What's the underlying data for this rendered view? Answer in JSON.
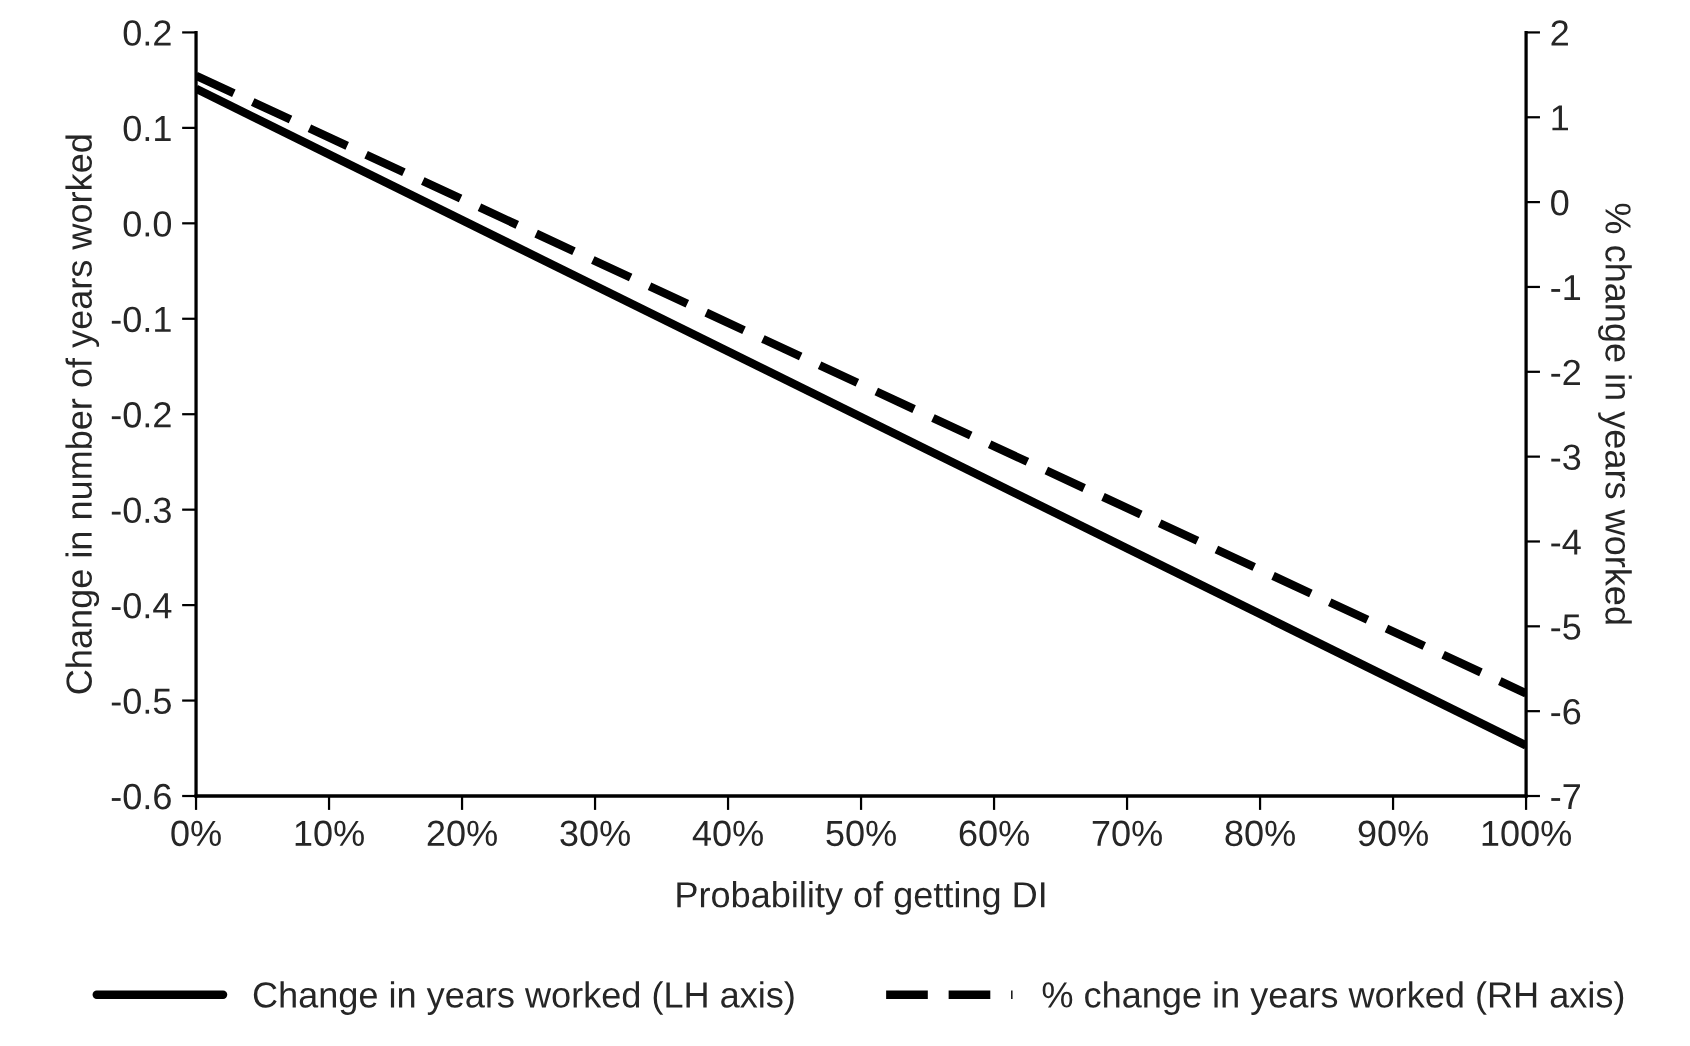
{
  "chart_data": {
    "type": "line",
    "xlabel": "Probability of getting DI",
    "ylabel": "Change in number of years worked",
    "y2label": "% change in years worked",
    "x": [
      0,
      100
    ],
    "series": [
      {
        "name": "Change in years worked (LH axis)",
        "color": "#000000",
        "values": [
          0.141,
          -0.547
        ],
        "line_style": "solid"
      },
      {
        "name": "% change in years worked (RH axis)",
        "color": "#000000",
        "values": [
          1.49,
          -5.79
        ],
        "axis": "y2",
        "line_style": "dashed"
      }
    ],
    "xlim": [
      0,
      100
    ],
    "xticks": [
      {
        "value": 0,
        "label": "0%"
      },
      {
        "value": 10,
        "label": "10%"
      },
      {
        "value": 20,
        "label": "20%"
      },
      {
        "value": 30,
        "label": "30%"
      },
      {
        "value": 40,
        "label": "40%"
      },
      {
        "value": 50,
        "label": "50%"
      },
      {
        "value": 60,
        "label": "60%"
      },
      {
        "value": 70,
        "label": "70%"
      },
      {
        "value": 80,
        "label": "80%"
      },
      {
        "value": 90,
        "label": "90%"
      },
      {
        "value": 100,
        "label": "100%"
      }
    ],
    "ylim": [
      -0.6,
      0.2
    ],
    "yticks": [
      {
        "value": -0.6,
        "label": "-0.6"
      },
      {
        "value": -0.5,
        "label": "-0.5"
      },
      {
        "value": -0.4,
        "label": "-0.4"
      },
      {
        "value": -0.3,
        "label": "-0.3"
      },
      {
        "value": -0.2,
        "label": "-0.2"
      },
      {
        "value": -0.1,
        "label": "-0.1"
      },
      {
        "value": 0,
        "label": "0.0"
      },
      {
        "value": 0.1,
        "label": "0.1"
      },
      {
        "value": 0.2,
        "label": "0.2"
      }
    ],
    "y2lim": [
      -7,
      2
    ],
    "y2ticks": [
      -7,
      -6,
      -5,
      -4,
      -3,
      -2,
      -1,
      0,
      1,
      2
    ],
    "grid": false,
    "legend": "bottom",
    "marker": "none"
  }
}
